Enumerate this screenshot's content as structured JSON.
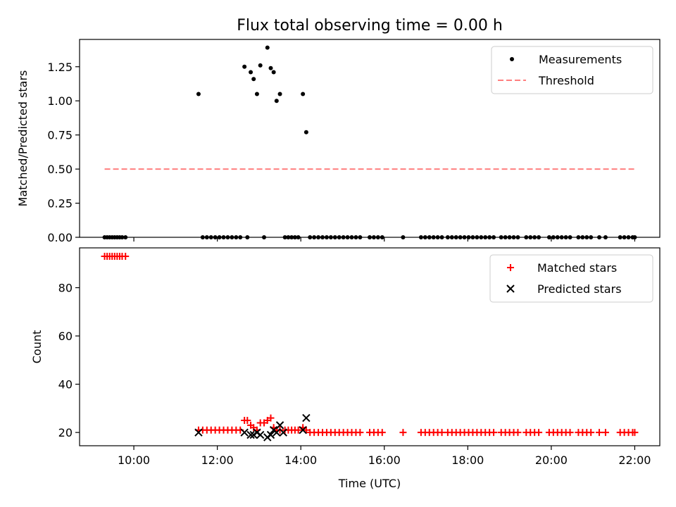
{
  "chart_data": [
    {
      "type": "scatter",
      "title": "Flux total observing time = 0.00 h",
      "xlabel": "",
      "ylabel": "Matched/Predicted stars",
      "x_unit": "hours (UTC)",
      "xlim": [
        8.7,
        22.6
      ],
      "ylim": [
        0,
        1.45
      ],
      "yticks": [
        0,
        0.25,
        0.5,
        0.75,
        1.0,
        1.25
      ],
      "ytick_labels": [
        "0.00",
        "0.25",
        "0.50",
        "0.75",
        "1.00",
        "1.25"
      ],
      "legend_position": "top-right",
      "series": [
        {
          "name": "Measurements",
          "marker": "dot",
          "color": "#000000",
          "points": [
            [
              9.3,
              0
            ],
            [
              9.36,
              0
            ],
            [
              9.42,
              0
            ],
            [
              9.48,
              0
            ],
            [
              9.54,
              0
            ],
            [
              9.6,
              0
            ],
            [
              9.66,
              0
            ],
            [
              9.72,
              0
            ],
            [
              9.8,
              0
            ],
            [
              11.55,
              1.05
            ],
            [
              11.65,
              0
            ],
            [
              11.75,
              0
            ],
            [
              11.85,
              0
            ],
            [
              11.95,
              0
            ],
            [
              12.05,
              0
            ],
            [
              12.15,
              0
            ],
            [
              12.25,
              0
            ],
            [
              12.35,
              0
            ],
            [
              12.45,
              0
            ],
            [
              12.55,
              0
            ],
            [
              12.65,
              1.25
            ],
            [
              12.72,
              0
            ],
            [
              12.8,
              1.21
            ],
            [
              12.87,
              1.16
            ],
            [
              12.95,
              1.05
            ],
            [
              13.03,
              1.26
            ],
            [
              13.12,
              0
            ],
            [
              13.2,
              1.39
            ],
            [
              13.28,
              1.24
            ],
            [
              13.35,
              1.21
            ],
            [
              13.42,
              1.0
            ],
            [
              13.5,
              1.05
            ],
            [
              13.62,
              0
            ],
            [
              13.7,
              0
            ],
            [
              13.78,
              0
            ],
            [
              13.86,
              0
            ],
            [
              13.94,
              0
            ],
            [
              14.05,
              1.05
            ],
            [
              14.13,
              0.77
            ],
            [
              14.22,
              0
            ],
            [
              14.32,
              0
            ],
            [
              14.42,
              0
            ],
            [
              14.52,
              0
            ],
            [
              14.62,
              0
            ],
            [
              14.72,
              0
            ],
            [
              14.82,
              0
            ],
            [
              14.92,
              0
            ],
            [
              15.02,
              0
            ],
            [
              15.12,
              0
            ],
            [
              15.22,
              0
            ],
            [
              15.32,
              0
            ],
            [
              15.42,
              0
            ],
            [
              15.65,
              0
            ],
            [
              15.75,
              0
            ],
            [
              15.85,
              0
            ],
            [
              15.95,
              0
            ],
            [
              16.45,
              0
            ],
            [
              16.88,
              0
            ],
            [
              16.98,
              0
            ],
            [
              17.08,
              0
            ],
            [
              17.18,
              0
            ],
            [
              17.28,
              0
            ],
            [
              17.38,
              0
            ],
            [
              17.52,
              0
            ],
            [
              17.62,
              0
            ],
            [
              17.72,
              0
            ],
            [
              17.82,
              0
            ],
            [
              17.92,
              0
            ],
            [
              18.02,
              0
            ],
            [
              18.12,
              0
            ],
            [
              18.22,
              0
            ],
            [
              18.32,
              0
            ],
            [
              18.42,
              0
            ],
            [
              18.52,
              0
            ],
            [
              18.62,
              0
            ],
            [
              18.8,
              0
            ],
            [
              18.9,
              0
            ],
            [
              19.0,
              0
            ],
            [
              19.1,
              0
            ],
            [
              19.2,
              0
            ],
            [
              19.4,
              0
            ],
            [
              19.5,
              0
            ],
            [
              19.6,
              0
            ],
            [
              19.7,
              0
            ],
            [
              19.95,
              0
            ],
            [
              20.05,
              0
            ],
            [
              20.15,
              0
            ],
            [
              20.25,
              0
            ],
            [
              20.35,
              0
            ],
            [
              20.45,
              0
            ],
            [
              20.65,
              0
            ],
            [
              20.75,
              0
            ],
            [
              20.85,
              0
            ],
            [
              20.95,
              0
            ],
            [
              21.15,
              0
            ],
            [
              21.3,
              0
            ],
            [
              21.65,
              0
            ],
            [
              21.75,
              0
            ],
            [
              21.85,
              0
            ],
            [
              21.95,
              0
            ],
            [
              22.0,
              0
            ]
          ]
        },
        {
          "name": "Threshold",
          "marker": "dashed-line",
          "color": "#ff7f7f",
          "points": [
            [
              9.3,
              0.5
            ],
            [
              22.0,
              0.5
            ]
          ]
        }
      ]
    },
    {
      "type": "scatter",
      "title": "",
      "xlabel": "Time (UTC)",
      "ylabel": "Count",
      "x_unit": "hours (UTC)",
      "xlim": [
        8.7,
        22.6
      ],
      "ylim": [
        14.5,
        96.5
      ],
      "xticks": [
        10,
        12,
        14,
        16,
        18,
        20,
        22
      ],
      "xtick_labels": [
        "10:00",
        "12:00",
        "14:00",
        "16:00",
        "18:00",
        "20:00",
        "22:00"
      ],
      "yticks": [
        20,
        40,
        60,
        80
      ],
      "ytick_labels": [
        "20",
        "40",
        "60",
        "80"
      ],
      "legend_position": "top-right",
      "series": [
        {
          "name": "Matched stars",
          "marker": "plus",
          "color": "#ff0000",
          "points": [
            [
              9.3,
              93
            ],
            [
              9.36,
              93
            ],
            [
              9.42,
              93
            ],
            [
              9.48,
              93
            ],
            [
              9.54,
              93
            ],
            [
              9.6,
              93
            ],
            [
              9.66,
              93
            ],
            [
              9.72,
              93
            ],
            [
              9.8,
              93
            ],
            [
              11.55,
              21
            ],
            [
              11.65,
              21
            ],
            [
              11.75,
              21
            ],
            [
              11.85,
              21
            ],
            [
              11.95,
              21
            ],
            [
              12.05,
              21
            ],
            [
              12.15,
              21
            ],
            [
              12.25,
              21
            ],
            [
              12.35,
              21
            ],
            [
              12.45,
              21
            ],
            [
              12.55,
              21
            ],
            [
              12.65,
              25
            ],
            [
              12.72,
              25
            ],
            [
              12.8,
              23
            ],
            [
              12.87,
              22
            ],
            [
              12.95,
              21
            ],
            [
              13.03,
              24
            ],
            [
              13.12,
              24
            ],
            [
              13.2,
              25
            ],
            [
              13.28,
              26
            ],
            [
              13.35,
              22
            ],
            [
              13.42,
              21
            ],
            [
              13.5,
              21
            ],
            [
              13.62,
              21
            ],
            [
              13.7,
              21
            ],
            [
              13.78,
              21
            ],
            [
              13.86,
              21
            ],
            [
              13.94,
              21
            ],
            [
              14.05,
              22
            ],
            [
              14.13,
              21
            ],
            [
              14.22,
              20
            ],
            [
              14.32,
              20
            ],
            [
              14.42,
              20
            ],
            [
              14.52,
              20
            ],
            [
              14.62,
              20
            ],
            [
              14.72,
              20
            ],
            [
              14.82,
              20
            ],
            [
              14.92,
              20
            ],
            [
              15.02,
              20
            ],
            [
              15.12,
              20
            ],
            [
              15.22,
              20
            ],
            [
              15.32,
              20
            ],
            [
              15.42,
              20
            ],
            [
              15.65,
              20
            ],
            [
              15.75,
              20
            ],
            [
              15.85,
              20
            ],
            [
              15.95,
              20
            ],
            [
              16.45,
              20
            ],
            [
              16.88,
              20
            ],
            [
              16.98,
              20
            ],
            [
              17.08,
              20
            ],
            [
              17.18,
              20
            ],
            [
              17.28,
              20
            ],
            [
              17.38,
              20
            ],
            [
              17.52,
              20
            ],
            [
              17.62,
              20
            ],
            [
              17.72,
              20
            ],
            [
              17.82,
              20
            ],
            [
              17.92,
              20
            ],
            [
              18.02,
              20
            ],
            [
              18.12,
              20
            ],
            [
              18.22,
              20
            ],
            [
              18.32,
              20
            ],
            [
              18.42,
              20
            ],
            [
              18.52,
              20
            ],
            [
              18.62,
              20
            ],
            [
              18.8,
              20
            ],
            [
              18.9,
              20
            ],
            [
              19.0,
              20
            ],
            [
              19.1,
              20
            ],
            [
              19.2,
              20
            ],
            [
              19.4,
              20
            ],
            [
              19.5,
              20
            ],
            [
              19.6,
              20
            ],
            [
              19.7,
              20
            ],
            [
              19.95,
              20
            ],
            [
              20.05,
              20
            ],
            [
              20.15,
              20
            ],
            [
              20.25,
              20
            ],
            [
              20.35,
              20
            ],
            [
              20.45,
              20
            ],
            [
              20.65,
              20
            ],
            [
              20.75,
              20
            ],
            [
              20.85,
              20
            ],
            [
              20.95,
              20
            ],
            [
              21.15,
              20
            ],
            [
              21.3,
              20
            ],
            [
              21.65,
              20
            ],
            [
              21.75,
              20
            ],
            [
              21.85,
              20
            ],
            [
              21.95,
              20
            ],
            [
              22.0,
              20
            ]
          ]
        },
        {
          "name": "Predicted stars",
          "marker": "x",
          "color": "#000000",
          "points": [
            [
              11.55,
              20
            ],
            [
              12.65,
              20
            ],
            [
              12.8,
              19
            ],
            [
              12.87,
              19
            ],
            [
              12.95,
              20
            ],
            [
              13.03,
              19
            ],
            [
              13.2,
              18
            ],
            [
              13.28,
              19
            ],
            [
              13.35,
              21
            ],
            [
              13.42,
              20
            ],
            [
              13.5,
              23
            ],
            [
              13.58,
              20
            ],
            [
              14.05,
              21
            ],
            [
              14.13,
              26
            ]
          ]
        }
      ]
    }
  ]
}
